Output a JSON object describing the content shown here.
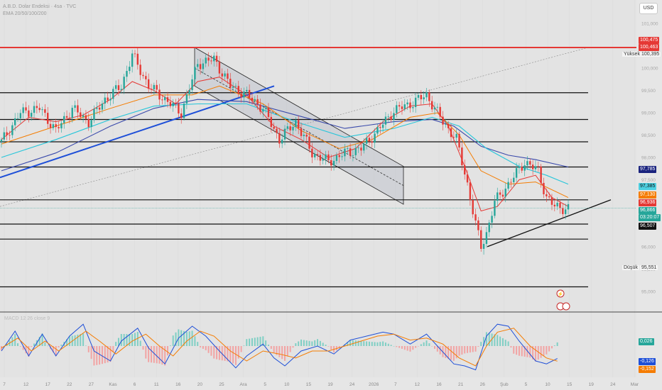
{
  "header": {
    "title": "A.B.D. Dolar Endeksi · 4sa · TVC",
    "indicator": "EMA 20/50/100/200"
  },
  "currency_button": "USD",
  "price_tags": {
    "hi1": "100,475",
    "hi2": "100,463",
    "pink1": "97,785",
    "cyan": "97,385",
    "orange": "97,130",
    "red": "96,936",
    "green": "96,866",
    "countdown": "03:20:07",
    "black": "96,507",
    "macd": "0,026",
    "macd_blue": "-0,126",
    "macd_orange": "-0,152"
  },
  "high_label": "Yüksek",
  "high_value": "100,395",
  "low_label": "Düşük",
  "low_value": "95,551",
  "macd_label": "MACD 12 26 close 9",
  "colors": {
    "red": "#e53935",
    "black": "#111111",
    "blue": "#1e4fd8",
    "green": "#26a69a",
    "orange": "#f57c00",
    "cyan": "#26c6da",
    "indigo": "#3949ab"
  },
  "chart_data": [
    {
      "type": "candlestick",
      "symbol": "DXY",
      "timeframe": "4h",
      "y_ticks": [
        "101,000",
        "100,500",
        "100,000",
        "99,500",
        "99,000",
        "98,500",
        "98,000",
        "97,500",
        "97,000",
        "96,500",
        "96,000",
        "95,500",
        "95,000"
      ],
      "x_ticks": [
        "7",
        "12",
        "17",
        "22",
        "27",
        "Kas",
        "6",
        "11",
        "16",
        "20",
        "25",
        "Ara",
        "5",
        "10",
        "15",
        "19",
        "24",
        "2026",
        "7",
        "12",
        "16",
        "21",
        "26",
        "Şub",
        "5",
        "10",
        "15",
        "19",
        "24",
        "Mar"
      ],
      "ylim": [
        94.6,
        101.4
      ],
      "horizontal_levels": [
        100.463,
        99.45,
        98.85,
        98.35,
        97.785,
        97.05,
        96.507,
        96.17,
        95.1
      ],
      "trendline": "ascending",
      "channel": "descending",
      "close_path": [
        [
          0,
          98.35
        ],
        [
          7,
          99.0
        ],
        [
          14,
          99.1
        ],
        [
          20,
          98.6
        ],
        [
          26,
          99.1
        ],
        [
          32,
          98.8
        ],
        [
          38,
          99.3
        ],
        [
          44,
          99.6
        ],
        [
          48,
          100.3
        ],
        [
          54,
          99.6
        ],
        [
          60,
          99.3
        ],
        [
          66,
          99.0
        ],
        [
          72,
          100.1
        ],
        [
          78,
          100.2
        ],
        [
          84,
          99.6
        ],
        [
          90,
          99.4
        ],
        [
          96,
          99.1
        ],
        [
          102,
          98.4
        ],
        [
          108,
          98.8
        ],
        [
          114,
          98.1
        ],
        [
          120,
          97.9
        ],
        [
          126,
          98.1
        ],
        [
          132,
          98.2
        ],
        [
          138,
          98.6
        ],
        [
          144,
          99.05
        ],
        [
          150,
          99.2
        ],
        [
          156,
          99.4
        ],
        [
          162,
          98.8
        ],
        [
          167,
          98.4
        ],
        [
          171,
          97.4
        ],
        [
          174,
          96.5
        ],
        [
          176,
          96.0
        ],
        [
          178,
          96.3
        ],
        [
          181,
          97.0
        ],
        [
          186,
          97.4
        ],
        [
          192,
          97.9
        ],
        [
          197,
          97.7
        ],
        [
          200,
          97.1
        ],
        [
          203,
          96.9
        ],
        [
          208,
          96.85
        ]
      ],
      "ema20": [
        [
          0,
          98.4
        ],
        [
          10,
          98.9
        ],
        [
          20,
          98.8
        ],
        [
          30,
          98.95
        ],
        [
          40,
          99.3
        ],
        [
          48,
          99.7
        ],
        [
          56,
          99.5
        ],
        [
          64,
          99.2
        ],
        [
          72,
          99.7
        ],
        [
          80,
          99.8
        ],
        [
          90,
          99.4
        ],
        [
          100,
          98.7
        ],
        [
          110,
          98.4
        ],
        [
          120,
          98.0
        ],
        [
          130,
          98.2
        ],
        [
          140,
          98.8
        ],
        [
          150,
          99.15
        ],
        [
          158,
          99.2
        ],
        [
          164,
          98.7
        ],
        [
          170,
          97.8
        ],
        [
          176,
          96.8
        ],
        [
          182,
          96.9
        ],
        [
          190,
          97.5
        ],
        [
          196,
          97.6
        ],
        [
          202,
          97.1
        ],
        [
          208,
          96.9
        ]
      ],
      "ema50": [
        [
          0,
          98.3
        ],
        [
          20,
          98.7
        ],
        [
          40,
          99.1
        ],
        [
          56,
          99.4
        ],
        [
          70,
          99.4
        ],
        [
          80,
          99.6
        ],
        [
          96,
          99.2
        ],
        [
          110,
          98.6
        ],
        [
          124,
          98.2
        ],
        [
          136,
          98.4
        ],
        [
          150,
          98.9
        ],
        [
          160,
          99.0
        ],
        [
          168,
          98.5
        ],
        [
          176,
          97.7
        ],
        [
          186,
          97.4
        ],
        [
          196,
          97.45
        ],
        [
          208,
          97.1
        ]
      ],
      "ema100": [
        [
          0,
          98.0
        ],
        [
          20,
          98.4
        ],
        [
          40,
          98.85
        ],
        [
          56,
          99.15
        ],
        [
          72,
          99.2
        ],
        [
          90,
          99.2
        ],
        [
          108,
          98.8
        ],
        [
          126,
          98.45
        ],
        [
          144,
          98.65
        ],
        [
          158,
          98.9
        ],
        [
          168,
          98.7
        ],
        [
          178,
          98.2
        ],
        [
          190,
          97.8
        ],
        [
          200,
          97.6
        ],
        [
          208,
          97.4
        ]
      ],
      "ema200": [
        [
          0,
          97.7
        ],
        [
          20,
          98.1
        ],
        [
          40,
          98.7
        ],
        [
          56,
          99.1
        ],
        [
          72,
          99.3
        ],
        [
          90,
          99.25
        ],
        [
          108,
          98.95
        ],
        [
          126,
          98.65
        ],
        [
          144,
          98.8
        ],
        [
          158,
          98.85
        ],
        [
          166,
          98.7
        ],
        [
          176,
          98.25
        ],
        [
          186,
          98.05
        ],
        [
          196,
          97.95
        ],
        [
          208,
          97.785
        ]
      ]
    },
    {
      "type": "macd",
      "series": [
        {
          "name": "MACD",
          "values": [
            [
              0,
              -0.05
            ],
            [
              5,
              0.15
            ],
            [
              10,
              -0.1
            ],
            [
              15,
              0.12
            ],
            [
              20,
              -0.1
            ],
            [
              25,
              0.1
            ],
            [
              30,
              0.22
            ],
            [
              34,
              -0.05
            ],
            [
              40,
              -0.15
            ],
            [
              44,
              0.05
            ],
            [
              50,
              0.18
            ],
            [
              54,
              -0.02
            ],
            [
              60,
              -0.18
            ],
            [
              65,
              0.08
            ],
            [
              70,
              0.2
            ],
            [
              75,
              0.1
            ],
            [
              80,
              -0.05
            ],
            [
              86,
              -0.22
            ],
            [
              90,
              -0.1
            ],
            [
              96,
              0.02
            ],
            [
              100,
              -0.12
            ],
            [
              104,
              -0.2
            ],
            [
              110,
              -0.05
            ],
            [
              116,
              0.0
            ],
            [
              122,
              -0.08
            ],
            [
              128,
              0.06
            ],
            [
              134,
              0.1
            ],
            [
              140,
              0.14
            ],
            [
              144,
              0.12
            ],
            [
              150,
              0.02
            ],
            [
              156,
              0.12
            ],
            [
              160,
              0.0
            ],
            [
              166,
              -0.18
            ],
            [
              170,
              -0.2
            ],
            [
              174,
              -0.24
            ],
            [
              178,
              0.1
            ],
            [
              182,
              0.22
            ],
            [
              186,
              0.2
            ],
            [
              190,
              0.05
            ],
            [
              196,
              -0.15
            ],
            [
              200,
              -0.18
            ],
            [
              204,
              -0.126
            ]
          ]
        },
        {
          "name": "Signal",
          "values": [
            [
              0,
              -0.02
            ],
            [
              6,
              0.08
            ],
            [
              11,
              -0.05
            ],
            [
              16,
              0.05
            ],
            [
              21,
              -0.05
            ],
            [
              26,
              0.05
            ],
            [
              31,
              0.15
            ],
            [
              36,
              0.05
            ],
            [
              42,
              -0.08
            ],
            [
              48,
              0.05
            ],
            [
              53,
              0.12
            ],
            [
              58,
              0.0
            ],
            [
              63,
              -0.1
            ],
            [
              68,
              0.05
            ],
            [
              73,
              0.15
            ],
            [
              78,
              0.1
            ],
            [
              84,
              -0.05
            ],
            [
              90,
              -0.15
            ],
            [
              96,
              -0.05
            ],
            [
              102,
              -0.08
            ],
            [
              108,
              -0.12
            ],
            [
              114,
              -0.05
            ],
            [
              120,
              -0.05
            ],
            [
              126,
              0.0
            ],
            [
              132,
              0.05
            ],
            [
              138,
              0.1
            ],
            [
              144,
              0.12
            ],
            [
              150,
              0.06
            ],
            [
              156,
              0.08
            ],
            [
              162,
              0.02
            ],
            [
              168,
              -0.12
            ],
            [
              174,
              -0.2
            ],
            [
              178,
              0.0
            ],
            [
              182,
              0.14
            ],
            [
              188,
              0.18
            ],
            [
              194,
              0.0
            ],
            [
              200,
              -0.12
            ],
            [
              204,
              -0.152
            ]
          ]
        }
      ],
      "ylim": [
        -0.3,
        0.3
      ]
    }
  ]
}
